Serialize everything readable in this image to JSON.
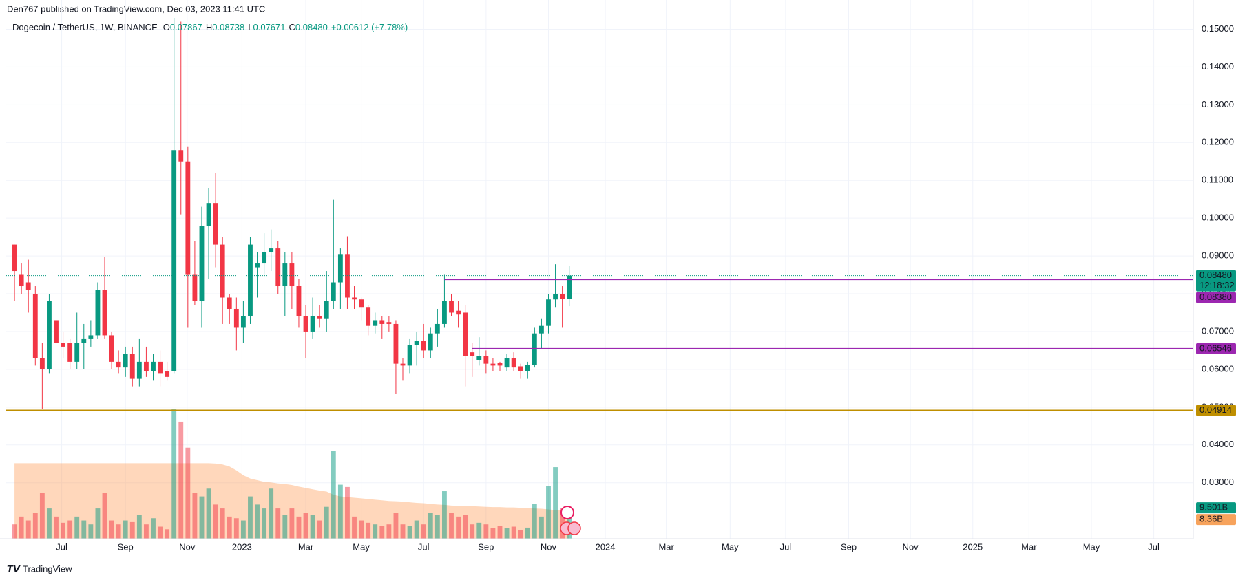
{
  "header": {
    "publisher": "Den767 published on TradingView.com, Dec 03, 2023 11:41 UTC"
  },
  "branding": "TradingView",
  "chart_data": {
    "type": "candlestick",
    "legend": {
      "symbol": "Dogecoin / TetherUS, 1W, BINANCE",
      "ohlc": [
        {
          "key": "O",
          "value": "0.07867"
        },
        {
          "key": "H",
          "value": "0.08738"
        },
        {
          "key": "L",
          "value": "0.07671"
        },
        {
          "key": "C",
          "value": "0.08480"
        }
      ],
      "change": "+0.00612 (+7.78%)"
    },
    "candles": [
      [
        0.093,
        0.093,
        0.078,
        0.086
      ],
      [
        0.085,
        0.088,
        0.08,
        0.082
      ],
      [
        0.083,
        0.089,
        0.075,
        0.081
      ],
      [
        0.08,
        0.082,
        0.061,
        0.063
      ],
      [
        0.063,
        0.067,
        0.0495,
        0.06
      ],
      [
        0.06,
        0.08,
        0.059,
        0.078
      ],
      [
        0.073,
        0.079,
        0.06,
        0.067
      ],
      [
        0.067,
        0.07,
        0.063,
        0.066
      ],
      [
        0.067,
        0.068,
        0.06,
        0.062
      ],
      [
        0.062,
        0.075,
        0.06,
        0.067
      ],
      [
        0.067,
        0.072,
        0.06,
        0.068
      ],
      [
        0.068,
        0.073,
        0.066,
        0.069
      ],
      [
        0.069,
        0.083,
        0.068,
        0.081
      ],
      [
        0.081,
        0.0898,
        0.068,
        0.069
      ],
      [
        0.069,
        0.07,
        0.06,
        0.062
      ],
      [
        0.062,
        0.065,
        0.059,
        0.0605
      ],
      [
        0.0605,
        0.066,
        0.058,
        0.064
      ],
      [
        0.064,
        0.066,
        0.0555,
        0.0575
      ],
      [
        0.0575,
        0.068,
        0.0555,
        0.062
      ],
      [
        0.062,
        0.066,
        0.058,
        0.0595
      ],
      [
        0.0595,
        0.064,
        0.057,
        0.062
      ],
      [
        0.062,
        0.065,
        0.0555,
        0.059
      ],
      [
        0.0595,
        0.062,
        0.057,
        0.058
      ],
      [
        0.0595,
        0.153,
        0.059,
        0.118
      ],
      [
        0.118,
        0.152,
        0.101,
        0.115
      ],
      [
        0.115,
        0.119,
        0.071,
        0.085
      ],
      [
        0.085,
        0.094,
        0.077,
        0.078
      ],
      [
        0.078,
        0.103,
        0.071,
        0.098
      ],
      [
        0.098,
        0.108,
        0.084,
        0.104
      ],
      [
        0.104,
        0.112,
        0.087,
        0.093
      ],
      [
        0.093,
        0.095,
        0.072,
        0.079
      ],
      [
        0.079,
        0.08,
        0.072,
        0.076
      ],
      [
        0.076,
        0.079,
        0.065,
        0.071
      ],
      [
        0.071,
        0.078,
        0.067,
        0.074
      ],
      [
        0.074,
        0.095,
        0.072,
        0.093
      ],
      [
        0.087,
        0.091,
        0.079,
        0.088
      ],
      [
        0.088,
        0.096,
        0.085,
        0.091
      ],
      [
        0.091,
        0.097,
        0.086,
        0.092
      ],
      [
        0.092,
        0.094,
        0.08,
        0.082
      ],
      [
        0.082,
        0.091,
        0.074,
        0.088
      ],
      [
        0.088,
        0.091,
        0.076,
        0.082
      ],
      [
        0.082,
        0.084,
        0.071,
        0.074
      ],
      [
        0.074,
        0.077,
        0.063,
        0.07
      ],
      [
        0.07,
        0.079,
        0.068,
        0.074
      ],
      [
        0.074,
        0.077,
        0.071,
        0.0735
      ],
      [
        0.0735,
        0.086,
        0.07,
        0.078
      ],
      [
        0.078,
        0.105,
        0.076,
        0.083
      ],
      [
        0.083,
        0.092,
        0.076,
        0.0905
      ],
      [
        0.0905,
        0.0952,
        0.076,
        0.079
      ],
      [
        0.079,
        0.082,
        0.076,
        0.0785
      ],
      [
        0.0785,
        0.079,
        0.073,
        0.0765
      ],
      [
        0.0765,
        0.077,
        0.069,
        0.0715
      ],
      [
        0.0715,
        0.075,
        0.0695,
        0.073
      ],
      [
        0.073,
        0.074,
        0.068,
        0.072
      ],
      [
        0.0725,
        0.074,
        0.07,
        0.072
      ],
      [
        0.072,
        0.073,
        0.0535,
        0.0615
      ],
      [
        0.0615,
        0.063,
        0.057,
        0.061
      ],
      [
        0.061,
        0.068,
        0.059,
        0.0665
      ],
      [
        0.0665,
        0.07,
        0.061,
        0.0675
      ],
      [
        0.0675,
        0.072,
        0.063,
        0.065
      ],
      [
        0.065,
        0.071,
        0.063,
        0.0695
      ],
      [
        0.0695,
        0.076,
        0.066,
        0.072
      ],
      [
        0.072,
        0.085,
        0.071,
        0.078
      ],
      [
        0.078,
        0.08,
        0.074,
        0.075
      ],
      [
        0.0755,
        0.078,
        0.071,
        0.0745
      ],
      [
        0.075,
        0.077,
        0.0555,
        0.0636
      ],
      [
        0.0645,
        0.067,
        0.058,
        0.0635
      ],
      [
        0.0625,
        0.0685,
        0.061,
        0.0635
      ],
      [
        0.0635,
        0.065,
        0.059,
        0.0615
      ],
      [
        0.0615,
        0.063,
        0.0595,
        0.061
      ],
      [
        0.0617,
        0.062,
        0.0595,
        0.061
      ],
      [
        0.0605,
        0.064,
        0.0595,
        0.063
      ],
      [
        0.063,
        0.0645,
        0.0595,
        0.0605
      ],
      [
        0.0608,
        0.0615,
        0.0575,
        0.0595
      ],
      [
        0.0595,
        0.062,
        0.0575,
        0.0612
      ],
      [
        0.0612,
        0.071,
        0.0605,
        0.0695
      ],
      [
        0.0695,
        0.0735,
        0.0655,
        0.0715
      ],
      [
        0.0715,
        0.08,
        0.0695,
        0.0785
      ],
      [
        0.0785,
        0.0878,
        0.0765,
        0.08
      ],
      [
        0.08,
        0.082,
        0.071,
        0.0787
      ],
      [
        0.07867,
        0.08738,
        0.07671,
        0.0848
      ]
    ],
    "volume": [
      4.4,
      6.8,
      5.6,
      8,
      14,
      9.3,
      6.8,
      4.9,
      5.6,
      6.8,
      5.6,
      4.4,
      9.3,
      14,
      5.6,
      4.4,
      5.6,
      5.1,
      7.3,
      4.4,
      6.3,
      3.7,
      2.9,
      39.8,
      36,
      28,
      14,
      13,
      15.4,
      10.5,
      9.3,
      6.8,
      6.3,
      5.6,
      13,
      10.5,
      9.3,
      15.4,
      9.3,
      7.3,
      9.3,
      6.8,
      8,
      7.3,
      5.6,
      9.8,
      27,
      16.6,
      15.9,
      6.8,
      5.6,
      4.9,
      4.4,
      3.9,
      4.4,
      8,
      4.4,
      3.9,
      5.6,
      4.4,
      8,
      7.3,
      14.6,
      8,
      6.8,
      7.3,
      4.4,
      4.9,
      4.4,
      3.2,
      3.9,
      3.2,
      3.7,
      2.7,
      3.4,
      10.7,
      6.8,
      16.1,
      22,
      9.3,
      9.501
    ],
    "volume_ma": [
      23.2,
      23.2,
      23.2,
      23.2,
      23.2,
      23.2,
      23.2,
      23.2,
      23.2,
      23.2,
      23.2,
      23.2,
      23.2,
      23.2,
      23.2,
      23.2,
      23.2,
      23.2,
      23.2,
      23.2,
      23.2,
      23.2,
      23.2,
      23.2,
      23.2,
      23.2,
      23.2,
      23.2,
      23.2,
      23.1,
      22.8,
      22.2,
      21,
      19.5,
      18.5,
      18,
      17.5,
      17.3,
      17,
      16.8,
      16.5,
      16,
      15.6,
      15.2,
      14.8,
      14.5,
      13.5,
      13,
      12.8,
      12.6,
      12.4,
      12.2,
      12,
      11.8,
      11.6,
      11.5,
      11.4,
      11.2,
      11,
      10.9,
      10.7,
      10.5,
      10.4,
      10.2,
      10.1,
      10,
      10,
      9.9,
      9.8,
      9.7,
      9.7,
      9.6,
      9.6,
      9.5,
      9.5,
      9.3,
      9.2,
      9,
      8.8,
      8.6,
      8.36
    ],
    "volume_badge": {
      "value": 9.501,
      "label": "9.501B"
    },
    "volume_ma_badge": {
      "value": 8.36,
      "label": "8.36B"
    },
    "last_price": {
      "value": 0.0848,
      "label": "0.08480",
      "countdown": "12:18:32"
    },
    "levels": [
      {
        "value": 0.0838,
        "label": "0.08380",
        "color": "#9c27b0",
        "start": 62
      },
      {
        "value": 0.06546,
        "label": "0.06546",
        "color": "#9c27b0",
        "start": 66
      },
      {
        "value": 0.04914,
        "label": "0.04914",
        "color": "#bf8f00",
        "start": -1.2
      }
    ],
    "up_color": "#089981",
    "down_color": "#f23645",
    "ylim": [
      0.0152,
      0.1519
    ],
    "yticks": [
      {
        "value": 0.15,
        "label": "0.15000"
      },
      {
        "value": 0.14,
        "label": "0.14000"
      },
      {
        "value": 0.13,
        "label": "0.13000"
      },
      {
        "value": 0.12,
        "label": "0.12000"
      },
      {
        "value": 0.11,
        "label": "0.11000"
      },
      {
        "value": 0.1,
        "label": "0.10000"
      },
      {
        "value": 0.09,
        "label": "0.09000"
      },
      {
        "value": 0.08,
        "label": "0.08000"
      },
      {
        "value": 0.07,
        "label": "0.07000"
      },
      {
        "value": 0.06,
        "label": "0.06000"
      },
      {
        "value": 0.05,
        "label": "0.05000"
      },
      {
        "value": 0.04,
        "label": "0.04000"
      },
      {
        "value": 0.03,
        "label": "0.03000"
      }
    ],
    "xlim": [
      -1.2,
      170
    ],
    "xticks": [
      {
        "value": 6.8,
        "label": "Jul"
      },
      {
        "value": 16,
        "label": "Sep"
      },
      {
        "value": 24.9,
        "label": "Nov"
      },
      {
        "value": 32.8,
        "label": "2023"
      },
      {
        "value": 42,
        "label": "Mar"
      },
      {
        "value": 50,
        "label": "May"
      },
      {
        "value": 59,
        "label": "Jul"
      },
      {
        "value": 68,
        "label": "Sep"
      },
      {
        "value": 77,
        "label": "Nov"
      },
      {
        "value": 85.2,
        "label": "2024"
      },
      {
        "value": 94,
        "label": "Mar"
      },
      {
        "value": 103.2,
        "label": "May"
      },
      {
        "value": 111.2,
        "label": "Jul"
      },
      {
        "value": 120.3,
        "label": "Sep"
      },
      {
        "value": 129.2,
        "label": "Nov"
      },
      {
        "value": 138.2,
        "label": "2025"
      },
      {
        "value": 146.3,
        "label": "Mar"
      },
      {
        "value": 155.3,
        "label": "May"
      },
      {
        "value": 164.3,
        "label": "Jul"
      }
    ],
    "grid": true
  }
}
